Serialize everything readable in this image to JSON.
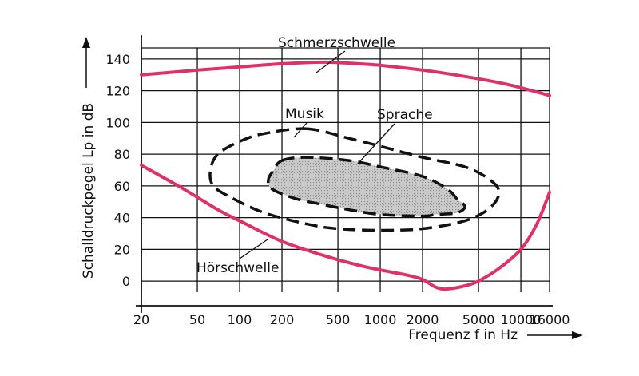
{
  "chart_data": {
    "type": "line",
    "xlabel": "Frequenz f in Hz",
    "ylabel": "Schalldruckpegel Lp in dB",
    "x_scale": "log",
    "x_ticks": [
      20,
      50,
      100,
      200,
      500,
      1000,
      2000,
      5000,
      10000,
      16000
    ],
    "x_tick_labels": [
      "20",
      "50",
      "100",
      "200",
      "500",
      "1000",
      "2000",
      "5000",
      "10000",
      "16000"
    ],
    "y_ticks": [
      0,
      20,
      40,
      60,
      80,
      100,
      120,
      140
    ],
    "y_tick_labels": [
      "0",
      "20",
      "40",
      "60",
      "80",
      "100",
      "120",
      "140"
    ],
    "xlim": [
      20,
      16000
    ],
    "ylim": [
      -7,
      148
    ],
    "grid": true,
    "series": [
      {
        "name": "Schmerzschwelle",
        "points": [
          [
            20,
            130
          ],
          [
            50,
            133
          ],
          [
            100,
            135
          ],
          [
            200,
            137
          ],
          [
            400,
            138
          ],
          [
            700,
            137
          ],
          [
            1000,
            136
          ],
          [
            2000,
            133
          ],
          [
            4000,
            129
          ],
          [
            8000,
            124
          ],
          [
            16000,
            117
          ]
        ]
      },
      {
        "name": "Hörschwelle",
        "points": [
          [
            20,
            73
          ],
          [
            40,
            58
          ],
          [
            70,
            45
          ],
          [
            100,
            38
          ],
          [
            200,
            25
          ],
          [
            400,
            16
          ],
          [
            700,
            10
          ],
          [
            1000,
            7
          ],
          [
            1500,
            4
          ],
          [
            2000,
            1
          ],
          [
            2500,
            -4
          ],
          [
            3000,
            -5
          ],
          [
            4000,
            -3
          ],
          [
            5000,
            0
          ],
          [
            7000,
            8
          ],
          [
            10000,
            20
          ],
          [
            13000,
            36
          ],
          [
            16000,
            56
          ]
        ]
      }
    ],
    "regions": [
      {
        "name": "Musik",
        "points": [
          [
            300,
            96
          ],
          [
            600,
            90
          ],
          [
            1000,
            85
          ],
          [
            2000,
            78
          ],
          [
            4000,
            72
          ],
          [
            6000,
            64
          ],
          [
            7000,
            56
          ],
          [
            6000,
            46
          ],
          [
            4000,
            38
          ],
          [
            2000,
            33
          ],
          [
            1000,
            32
          ],
          [
            500,
            33
          ],
          [
            300,
            36
          ],
          [
            150,
            43
          ],
          [
            90,
            52
          ],
          [
            65,
            60
          ],
          [
            62,
            70
          ],
          [
            70,
            80
          ],
          [
            100,
            88
          ],
          [
            150,
            93
          ]
        ]
      },
      {
        "name": "Sprache",
        "points": [
          [
            200,
            76
          ],
          [
            300,
            78
          ],
          [
            600,
            76
          ],
          [
            1000,
            72
          ],
          [
            2000,
            66
          ],
          [
            3000,
            58
          ],
          [
            3500,
            52
          ],
          [
            4000,
            47
          ],
          [
            3500,
            43
          ],
          [
            2500,
            42
          ],
          [
            2000,
            41
          ],
          [
            1000,
            42
          ],
          [
            600,
            45
          ],
          [
            400,
            48
          ],
          [
            250,
            52
          ],
          [
            170,
            58
          ],
          [
            160,
            64
          ],
          [
            175,
            70
          ]
        ]
      }
    ],
    "annotations": [
      "Schmerzschwelle",
      "Musik",
      "Sprache",
      "Hörschwelle"
    ],
    "colors": {
      "threshold_curves": "#e03068",
      "speech_fill": "#c9c9c9",
      "lines": "#111111"
    }
  }
}
